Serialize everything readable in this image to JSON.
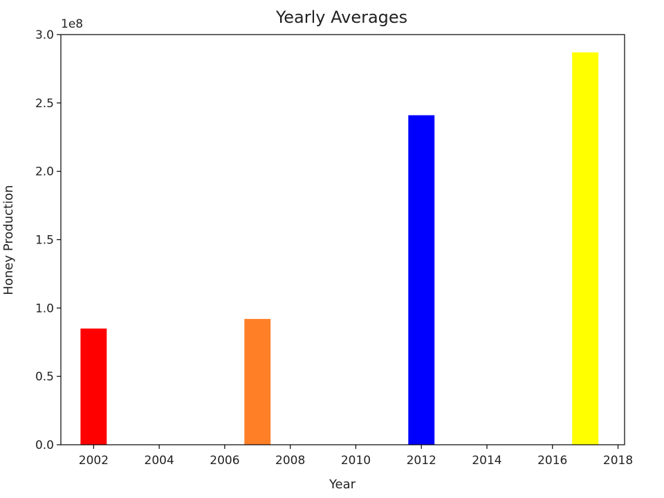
{
  "chart_data": {
    "type": "bar",
    "title": "Yearly Averages",
    "xlabel": "Year",
    "ylabel": "Honey Production",
    "y_offset_label": "1e8",
    "xlim": [
      2001,
      2018.2
    ],
    "ylim": [
      0,
      3.0
    ],
    "x_ticks": [
      2002,
      2004,
      2006,
      2008,
      2010,
      2012,
      2014,
      2016,
      2018
    ],
    "y_ticks": [
      "0.0",
      "0.5",
      "1.0",
      "1.5",
      "2.0",
      "2.5",
      "3.0"
    ],
    "bar_width": 0.8,
    "bars": [
      {
        "x": 2002,
        "value": 0.85,
        "color": "#ff0000"
      },
      {
        "x": 2007,
        "value": 0.92,
        "color": "#ff7f27"
      },
      {
        "x": 2012,
        "value": 2.41,
        "color": "#0000ff"
      },
      {
        "x": 2017,
        "value": 2.87,
        "color": "#ffff00"
      }
    ],
    "grid": false,
    "legend": "none"
  }
}
